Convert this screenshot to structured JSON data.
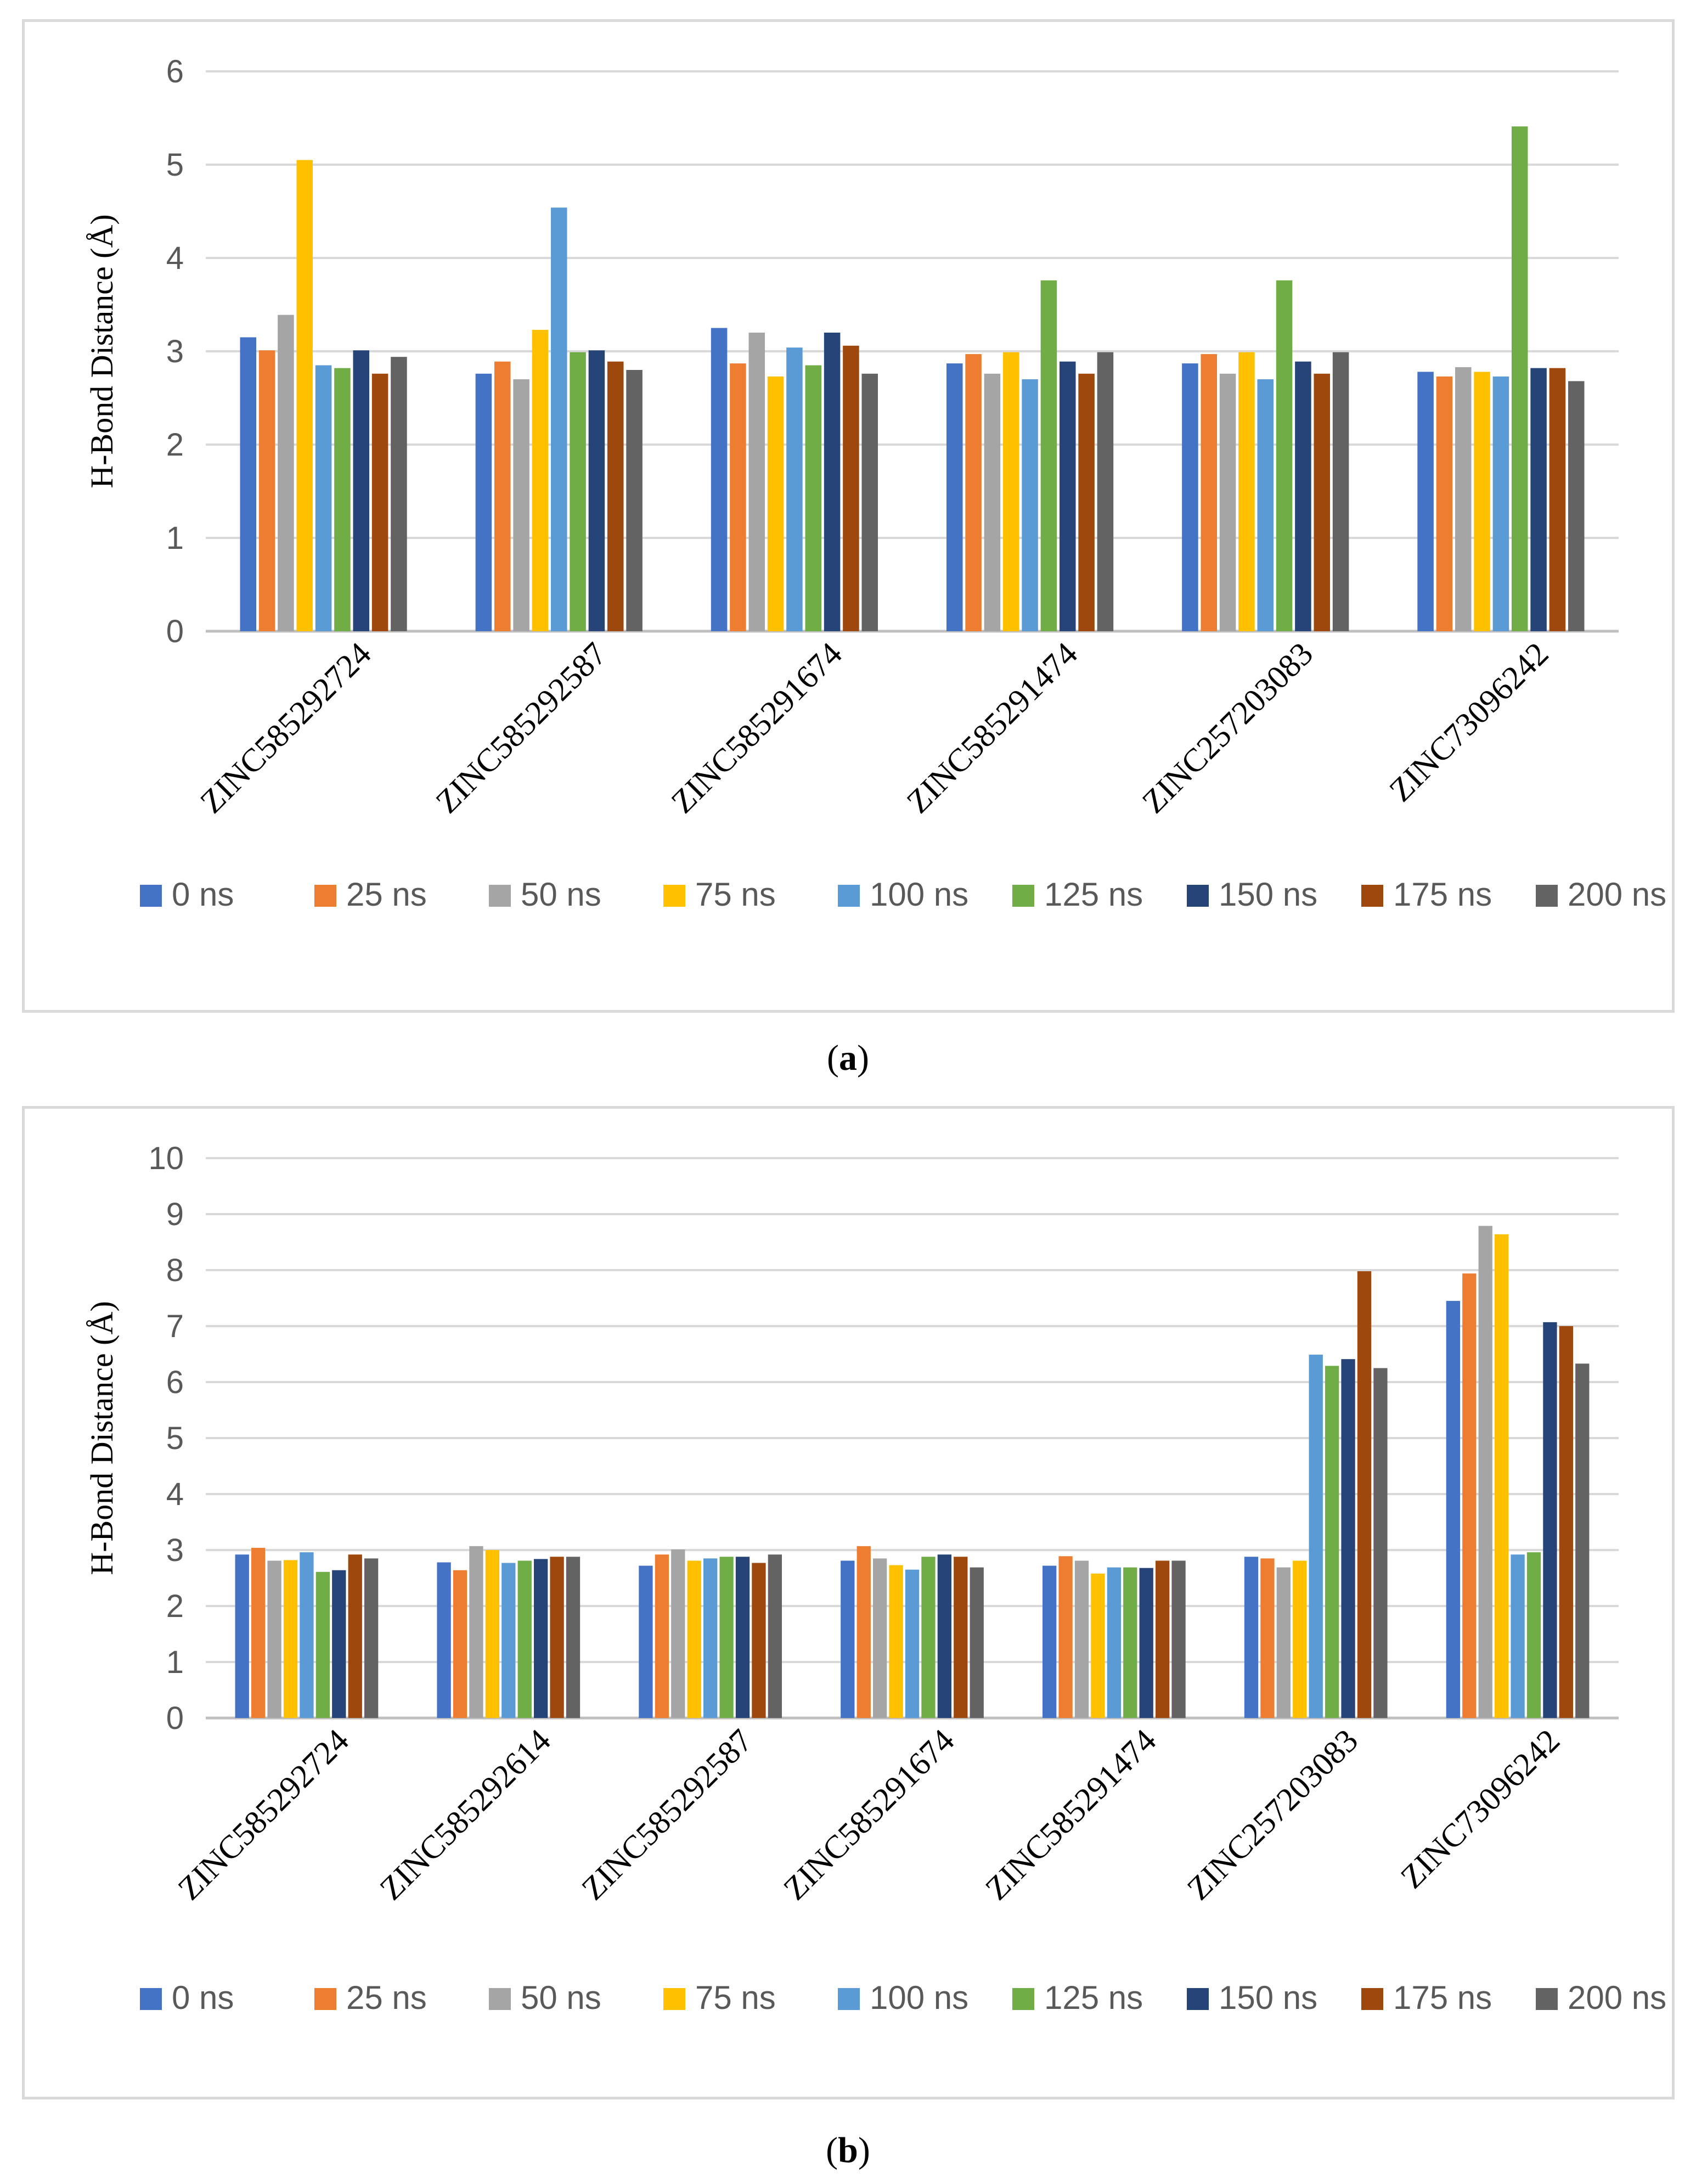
{
  "series_names": [
    "0 ns",
    "25 ns",
    "50 ns",
    "75 ns",
    "100 ns",
    "125 ns",
    "150 ns",
    "175 ns",
    "200 ns"
  ],
  "series_colors": [
    "#4472c4",
    "#ed7d31",
    "#a5a5a5",
    "#ffc000",
    "#5b9bd5",
    "#70ad47",
    "#264478",
    "#9e480e",
    "#636363"
  ],
  "captions": {
    "a": "a",
    "b": "b"
  },
  "chart_data": [
    {
      "id": "a",
      "type": "bar",
      "ylabel": "H-Bond Distance (Å)",
      "xlabel": "",
      "ylim": [
        0,
        6
      ],
      "yticks": [
        0,
        1,
        2,
        3,
        4,
        5,
        6
      ],
      "grid": true,
      "legend": "bottom",
      "categories": [
        "ZINC585292724",
        "ZINC585292587",
        "ZINC585291674",
        "ZINC585291474",
        "ZINC257203083",
        "ZINC73096242"
      ],
      "series": [
        {
          "name": "0 ns",
          "values": [
            3.15,
            2.76,
            3.25,
            2.87,
            2.87,
            2.78
          ]
        },
        {
          "name": "25 ns",
          "values": [
            3.01,
            2.89,
            2.87,
            2.97,
            2.97,
            2.73
          ]
        },
        {
          "name": "50 ns",
          "values": [
            3.39,
            2.7,
            3.2,
            2.76,
            2.76,
            2.83
          ]
        },
        {
          "name": "75 ns",
          "values": [
            5.05,
            3.23,
            2.73,
            2.99,
            2.99,
            2.78
          ]
        },
        {
          "name": "100 ns",
          "values": [
            2.85,
            4.54,
            3.04,
            2.7,
            2.7,
            2.73
          ]
        },
        {
          "name": "125 ns",
          "values": [
            2.82,
            2.99,
            2.85,
            3.76,
            3.76,
            5.41
          ]
        },
        {
          "name": "150 ns",
          "values": [
            3.01,
            3.01,
            3.2,
            2.89,
            2.89,
            2.82
          ]
        },
        {
          "name": "175 ns",
          "values": [
            2.76,
            2.89,
            3.06,
            2.76,
            2.76,
            2.82
          ]
        },
        {
          "name": "200 ns",
          "values": [
            2.94,
            2.8,
            2.76,
            2.99,
            2.99,
            2.68
          ]
        }
      ]
    },
    {
      "id": "b",
      "type": "bar",
      "ylabel": "H-Bond Distance (Å)",
      "xlabel": "",
      "ylim": [
        0,
        10
      ],
      "yticks": [
        0,
        1,
        2,
        3,
        4,
        5,
        6,
        7,
        8,
        9,
        10
      ],
      "grid": true,
      "legend": "bottom",
      "categories": [
        "ZINC585292724",
        "ZINC585292614",
        "ZINC585292587",
        "ZINC585291674",
        "ZINC585291474",
        "ZINC257203083",
        "ZINC73096242"
      ],
      "series": [
        {
          "name": "0 ns",
          "values": [
            2.92,
            2.78,
            2.72,
            2.81,
            2.72,
            2.88,
            7.45
          ]
        },
        {
          "name": "25 ns",
          "values": [
            3.04,
            2.64,
            2.92,
            3.07,
            2.89,
            2.85,
            7.94
          ]
        },
        {
          "name": "50 ns",
          "values": [
            2.81,
            3.07,
            3.01,
            2.85,
            2.81,
            2.69,
            8.79
          ]
        },
        {
          "name": "75 ns",
          "values": [
            2.82,
            3.0,
            2.81,
            2.73,
            2.58,
            2.81,
            8.64
          ]
        },
        {
          "name": "100 ns",
          "values": [
            2.96,
            2.77,
            2.85,
            2.65,
            2.69,
            6.49,
            2.92
          ]
        },
        {
          "name": "125 ns",
          "values": [
            2.61,
            2.81,
            2.88,
            2.88,
            2.69,
            6.29,
            2.96
          ]
        },
        {
          "name": "150 ns",
          "values": [
            2.64,
            2.84,
            2.88,
            2.92,
            2.68,
            6.41,
            7.07
          ]
        },
        {
          "name": "175 ns",
          "values": [
            2.92,
            2.88,
            2.77,
            2.88,
            2.81,
            7.98,
            7.0
          ]
        },
        {
          "name": "200 ns",
          "values": [
            2.85,
            2.88,
            2.92,
            2.69,
            2.81,
            6.25,
            6.33
          ]
        }
      ]
    }
  ]
}
